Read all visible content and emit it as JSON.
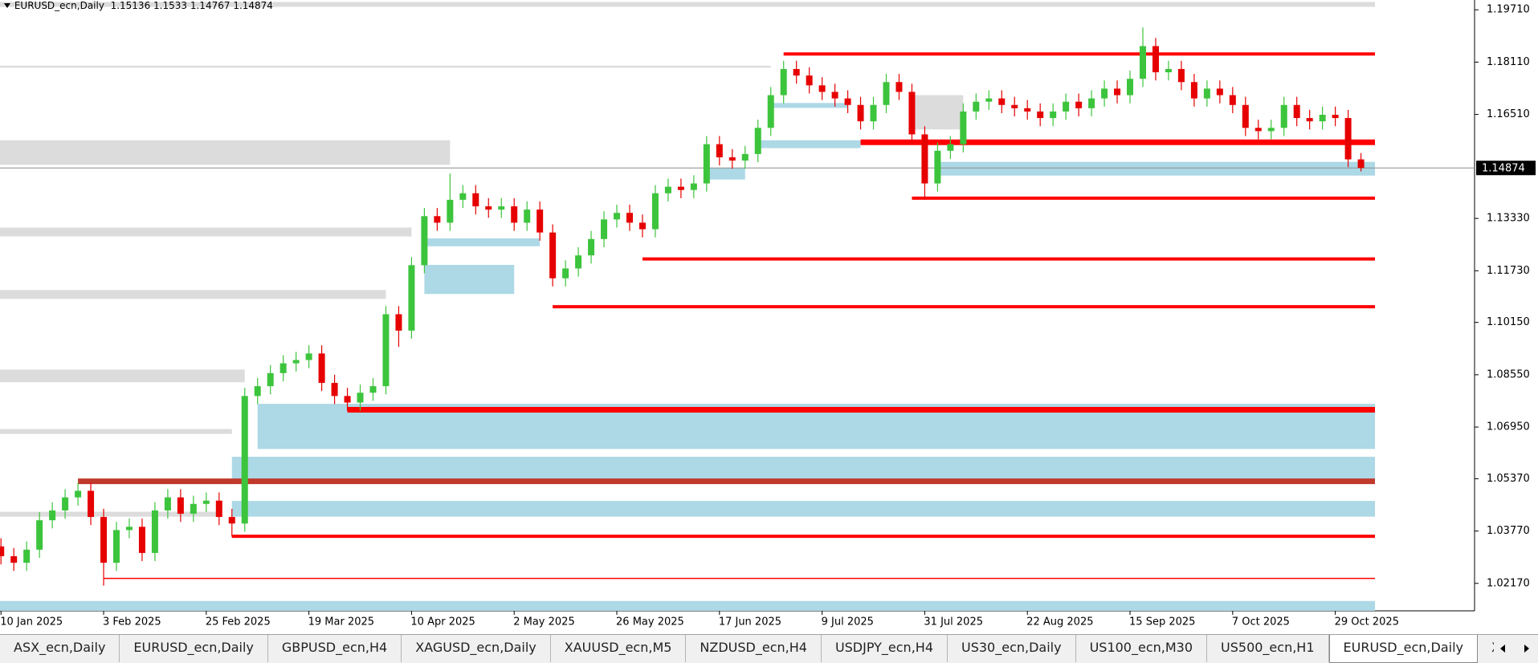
{
  "chart_data": {
    "type": "candlestick",
    "title": "EURUSD_ecn,Daily",
    "categories": [
      "10 Jan 2025",
      null,
      null,
      null,
      null,
      null,
      null,
      null,
      "3 Feb 2025",
      null,
      null,
      null,
      null,
      null,
      null,
      null,
      "25 Feb 2025",
      null,
      null,
      null,
      null,
      null,
      null,
      null,
      "19 Mar 2025",
      null,
      null,
      null,
      null,
      null,
      null,
      null,
      "10 Apr 2025",
      null,
      null,
      null,
      null,
      null,
      null,
      null,
      "2 May 2025",
      null,
      null,
      null,
      null,
      null,
      null,
      null,
      "26 May 2025",
      null,
      null,
      null,
      null,
      null,
      null,
      null,
      "17 Jun 2025",
      null,
      null,
      null,
      null,
      null,
      null,
      null,
      "9 Jul 2025",
      null,
      null,
      null,
      null,
      null,
      null,
      null,
      "31 Jul 2025",
      null,
      null,
      null,
      null,
      null,
      null,
      null,
      "22 Aug 2025",
      null,
      null,
      null,
      null,
      null,
      null,
      null,
      "15 Sep 2025",
      null,
      null,
      null,
      null,
      null,
      null,
      null,
      "7 Oct 2025",
      null,
      null,
      null,
      null,
      null,
      null,
      null,
      "29 Oct 2025",
      null,
      null
    ],
    "open": [
      1.033,
      1.03,
      1.028,
      1.032,
      1.041,
      1.044,
      1.048,
      1.05,
      1.042,
      1.028,
      1.038,
      1.039,
      1.031,
      1.044,
      1.048,
      1.043,
      1.046,
      1.047,
      1.042,
      1.04,
      1.079,
      1.082,
      1.086,
      1.089,
      1.09,
      1.092,
      1.083,
      1.079,
      1.077,
      1.08,
      1.082,
      1.104,
      1.099,
      1.119,
      1.134,
      1.132,
      1.139,
      1.141,
      1.137,
      1.136,
      1.137,
      1.132,
      1.136,
      1.129,
      1.115,
      1.118,
      1.122,
      1.127,
      1.133,
      1.135,
      1.132,
      1.13,
      1.141,
      1.143,
      1.142,
      1.144,
      1.156,
      1.152,
      1.151,
      1.153,
      1.161,
      1.171,
      1.179,
      1.177,
      1.174,
      1.172,
      1.17,
      1.168,
      1.163,
      1.168,
      1.175,
      1.172,
      1.159,
      1.144,
      1.154,
      1.156,
      1.166,
      1.169,
      1.17,
      1.168,
      1.167,
      1.166,
      1.164,
      1.166,
      1.169,
      1.167,
      1.17,
      1.173,
      1.171,
      1.176,
      1.186,
      1.178,
      1.179,
      1.175,
      1.17,
      1.173,
      1.171,
      1.168,
      1.161,
      1.16,
      1.161,
      1.168,
      1.164,
      1.163,
      1.165,
      1.164,
      1.15136
    ],
    "high": [
      1.0355,
      1.0325,
      1.0345,
      1.0435,
      1.0465,
      1.0505,
      1.0525,
      1.0525,
      1.0445,
      1.0405,
      1.0415,
      1.0415,
      1.0465,
      1.0505,
      1.0505,
      1.0485,
      1.0495,
      1.0495,
      1.0445,
      1.0815,
      1.0845,
      1.0885,
      1.0915,
      1.0925,
      1.0945,
      1.0945,
      1.0855,
      1.0815,
      1.0825,
      1.0845,
      1.1065,
      1.1065,
      1.1215,
      1.1365,
      1.1365,
      1.147,
      1.1435,
      1.1435,
      1.1395,
      1.1395,
      1.1395,
      1.1385,
      1.1385,
      1.1315,
      1.1205,
      1.1245,
      1.1295,
      1.1355,
      1.1375,
      1.1375,
      1.1345,
      1.1435,
      1.1455,
      1.1455,
      1.1465,
      1.1585,
      1.1585,
      1.1545,
      1.1555,
      1.1635,
      1.1735,
      1.1815,
      1.1815,
      1.1795,
      1.1765,
      1.1745,
      1.1725,
      1.1705,
      1.1705,
      1.1775,
      1.1775,
      1.1745,
      1.1615,
      1.1565,
      1.1585,
      1.1685,
      1.1715,
      1.1725,
      1.1725,
      1.1705,
      1.1695,
      1.1685,
      1.1685,
      1.1715,
      1.1715,
      1.1725,
      1.1755,
      1.1755,
      1.1785,
      1.1917,
      1.1885,
      1.1815,
      1.1815,
      1.1775,
      1.1755,
      1.1755,
      1.1735,
      1.1705,
      1.1635,
      1.1635,
      1.1705,
      1.1705,
      1.1665,
      1.1675,
      1.1675,
      1.1665,
      1.1533
    ],
    "low": [
      1.0275,
      1.0255,
      1.0255,
      1.0295,
      1.0385,
      1.0415,
      1.0455,
      1.0395,
      1.021,
      1.0255,
      1.0355,
      1.0285,
      1.0285,
      1.0415,
      1.0405,
      1.0405,
      1.0435,
      1.0395,
      1.036,
      1.0375,
      1.0765,
      1.0795,
      1.0835,
      1.0865,
      1.0875,
      1.0805,
      1.0765,
      1.0745,
      1.0745,
      1.0775,
      1.0795,
      1.094,
      1.0965,
      1.1165,
      1.1295,
      1.1295,
      1.1365,
      1.1345,
      1.1335,
      1.1335,
      1.1295,
      1.1295,
      1.1265,
      1.1125,
      1.1125,
      1.1155,
      1.1195,
      1.1245,
      1.1305,
      1.1295,
      1.1275,
      1.1275,
      1.1385,
      1.1395,
      1.1395,
      1.1415,
      1.1495,
      1.1485,
      1.1485,
      1.1505,
      1.1585,
      1.1685,
      1.1745,
      1.1715,
      1.1695,
      1.1675,
      1.1655,
      1.1605,
      1.1605,
      1.1655,
      1.1695,
      1.1565,
      1.139,
      1.1415,
      1.1515,
      1.1535,
      1.1635,
      1.1665,
      1.1655,
      1.1645,
      1.1635,
      1.1615,
      1.1615,
      1.1635,
      1.1645,
      1.1645,
      1.1675,
      1.1685,
      1.1685,
      1.1735,
      1.1755,
      1.1755,
      1.1725,
      1.1675,
      1.1675,
      1.1685,
      1.1655,
      1.1585,
      1.1575,
      1.1575,
      1.1585,
      1.1615,
      1.1605,
      1.1605,
      1.1615,
      1.149,
      1.14767
    ],
    "close": [
      1.03,
      1.028,
      1.032,
      1.041,
      1.044,
      1.048,
      1.05,
      1.042,
      1.028,
      1.038,
      1.039,
      1.031,
      1.044,
      1.048,
      1.043,
      1.046,
      1.047,
      1.042,
      1.04,
      1.079,
      1.082,
      1.086,
      1.089,
      1.09,
      1.092,
      1.083,
      1.079,
      1.077,
      1.08,
      1.082,
      1.104,
      1.099,
      1.119,
      1.134,
      1.132,
      1.139,
      1.141,
      1.137,
      1.136,
      1.137,
      1.132,
      1.136,
      1.129,
      1.115,
      1.118,
      1.122,
      1.127,
      1.133,
      1.135,
      1.132,
      1.13,
      1.141,
      1.143,
      1.142,
      1.144,
      1.156,
      1.152,
      1.151,
      1.153,
      1.161,
      1.171,
      1.179,
      1.177,
      1.174,
      1.172,
      1.17,
      1.168,
      1.163,
      1.168,
      1.175,
      1.172,
      1.159,
      1.144,
      1.154,
      1.156,
      1.166,
      1.169,
      1.17,
      1.168,
      1.167,
      1.166,
      1.164,
      1.166,
      1.169,
      1.167,
      1.17,
      1.173,
      1.171,
      1.176,
      1.186,
      1.178,
      1.179,
      1.175,
      1.17,
      1.173,
      1.171,
      1.168,
      1.161,
      1.16,
      1.161,
      1.168,
      1.164,
      1.163,
      1.165,
      1.164,
      1.15136,
      1.14874
    ],
    "up_color": "#3cc43c",
    "down_color": "#e60000",
    "ylim": [
      1.0133,
      1.2001
    ],
    "yticks": [
      {
        "value": 1.1971,
        "label": "1.19710"
      },
      {
        "value": 1.1811,
        "label": "1.18110"
      },
      {
        "value": 1.1651,
        "label": "1.16510"
      },
      {
        "value": 1.1333,
        "label": "1.13330"
      },
      {
        "value": 1.1173,
        "label": "1.11730"
      },
      {
        "value": 1.1015,
        "label": "1.10150"
      },
      {
        "value": 1.0855,
        "label": "1.08550"
      },
      {
        "value": 1.0695,
        "label": "1.06950"
      },
      {
        "value": 1.0537,
        "label": "1.05370"
      },
      {
        "value": 1.0377,
        "label": "1.03770"
      },
      {
        "value": 1.0217,
        "label": "1.02170"
      }
    ],
    "zones": [
      {
        "top": 1.1995,
        "bottom": 1.198,
        "start": 0,
        "color": "#dcdcdc"
      },
      {
        "top": 1.18,
        "bottom": 1.1794,
        "start": 0,
        "end": 60,
        "color": "#dcdcdc"
      },
      {
        "top": 1.1572,
        "bottom": 1.1497,
        "start": 0,
        "end": 35,
        "color": "#dcdcdc"
      },
      {
        "top": 1.1305,
        "bottom": 1.1278,
        "start": 0,
        "end": 32,
        "color": "#dcdcdc"
      },
      {
        "top": 1.1114,
        "bottom": 1.1087,
        "start": 0,
        "end": 30,
        "color": "#dcdcdc"
      },
      {
        "top": 1.0871,
        "bottom": 1.0832,
        "start": 0,
        "end": 19,
        "color": "#dcdcdc"
      },
      {
        "top": 1.0689,
        "bottom": 1.0674,
        "start": 0,
        "end": 18,
        "color": "#dcdcdc"
      },
      {
        "top": 1.0436,
        "bottom": 1.0421,
        "start": 0,
        "end": 17,
        "color": "#dcdcdc"
      },
      {
        "top": 1.171,
        "bottom": 1.1605,
        "start": 71,
        "end": 75,
        "color": "#dcdcdc"
      },
      {
        "top": 1.0766,
        "bottom": 1.0628,
        "start": 20,
        "color": "#add8e6"
      },
      {
        "top": 1.0604,
        "bottom": 1.0532,
        "start": 18,
        "color": "#add8e6"
      },
      {
        "top": 1.0469,
        "bottom": 1.0421,
        "start": 18,
        "color": "#add8e6"
      },
      {
        "top": 1.0163,
        "bottom": 1.0133,
        "start": 0,
        "color": "#add8e6"
      },
      {
        "top": 1.1506,
        "bottom": 1.1464,
        "start": 73,
        "color": "#add8e6"
      },
      {
        "top": 1.1191,
        "bottom": 1.1102,
        "start": 33,
        "end": 40,
        "color": "#add8e6"
      },
      {
        "top": 1.1272,
        "bottom": 1.1248,
        "start": 33,
        "end": 42,
        "color": "#add8e6"
      },
      {
        "top": 1.1572,
        "bottom": 1.1548,
        "start": 59,
        "end": 67,
        "color": "#add8e6"
      },
      {
        "top": 1.1487,
        "bottom": 1.1452,
        "start": 55,
        "end": 58,
        "color": "#add8e6"
      },
      {
        "top": 1.1686,
        "bottom": 1.1671,
        "start": 60,
        "end": 66,
        "color": "#add8e6"
      }
    ],
    "levels": [
      {
        "value": 1.1836,
        "start": 61,
        "color": "#ff0000",
        "weight": "normal"
      },
      {
        "value": 1.1566,
        "start": 67,
        "color": "#ff0000",
        "weight": "thick"
      },
      {
        "value": 1.1395,
        "start": 71,
        "color": "#ff0000",
        "weight": "normal"
      },
      {
        "value": 1.1209,
        "start": 50,
        "color": "#ff0000",
        "weight": "normal"
      },
      {
        "value": 1.1063,
        "start": 43,
        "color": "#ff0000",
        "weight": "normal"
      },
      {
        "value": 1.0748,
        "start": 27,
        "color": "#ff0000",
        "weight": "thick"
      },
      {
        "value": 1.0529,
        "start": 6,
        "color": "#c0392b",
        "weight": "thick"
      },
      {
        "value": 1.0361,
        "start": 18,
        "color": "#ff0000",
        "weight": "normal"
      },
      {
        "value": 1.0232,
        "start": 8,
        "color": "#ff0000",
        "weight": "thin"
      }
    ]
  },
  "tabs": {
    "items": [
      "ASX_ecn,Daily",
      "EURUSD_ecn,Daily",
      "GBPUSD_ecn,H4",
      "XAGUSD_ecn,Daily",
      "XAUUSD_ecn,M5",
      "NZDUSD_ecn,H4",
      "USDJPY_ecn,H4",
      "US30_ecn,Daily",
      "US100_ecn,M30",
      "US500_ecn,H1",
      "EURUSD_ecn,Daily",
      "XAUUSD_ecn,Daily"
    ],
    "active": 10
  }
}
